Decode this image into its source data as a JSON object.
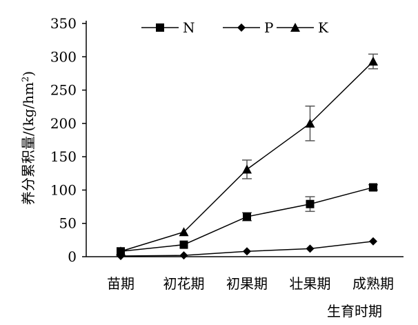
{
  "chart_data": {
    "type": "line",
    "categories": [
      "苗期",
      "初花期",
      "初果期",
      "壮果期",
      "成熟期"
    ],
    "xlabel": "生育时期",
    "ylabel": "养分累积量/(kg/hm²)",
    "ylabel_parts": {
      "main": "养分累积量/(kg/hm",
      "sup": "2",
      "tail": ")"
    },
    "ylim": [
      0,
      350
    ],
    "yticks": [
      0,
      50,
      100,
      150,
      200,
      250,
      300,
      350
    ],
    "grid": false,
    "legend_position": "top",
    "series": [
      {
        "name": "N",
        "marker": "square",
        "values": [
          8,
          18,
          60,
          79,
          104
        ],
        "errors": [
          0,
          0,
          6,
          11,
          4
        ]
      },
      {
        "name": "P",
        "marker": "diamond",
        "values": [
          1,
          2,
          8,
          12,
          23
        ],
        "errors": [
          0,
          0,
          0,
          0,
          0
        ]
      },
      {
        "name": "K",
        "marker": "triangle",
        "values": [
          8,
          37,
          131,
          200,
          293
        ],
        "errors": [
          0,
          0,
          14,
          26,
          11
        ]
      }
    ]
  }
}
